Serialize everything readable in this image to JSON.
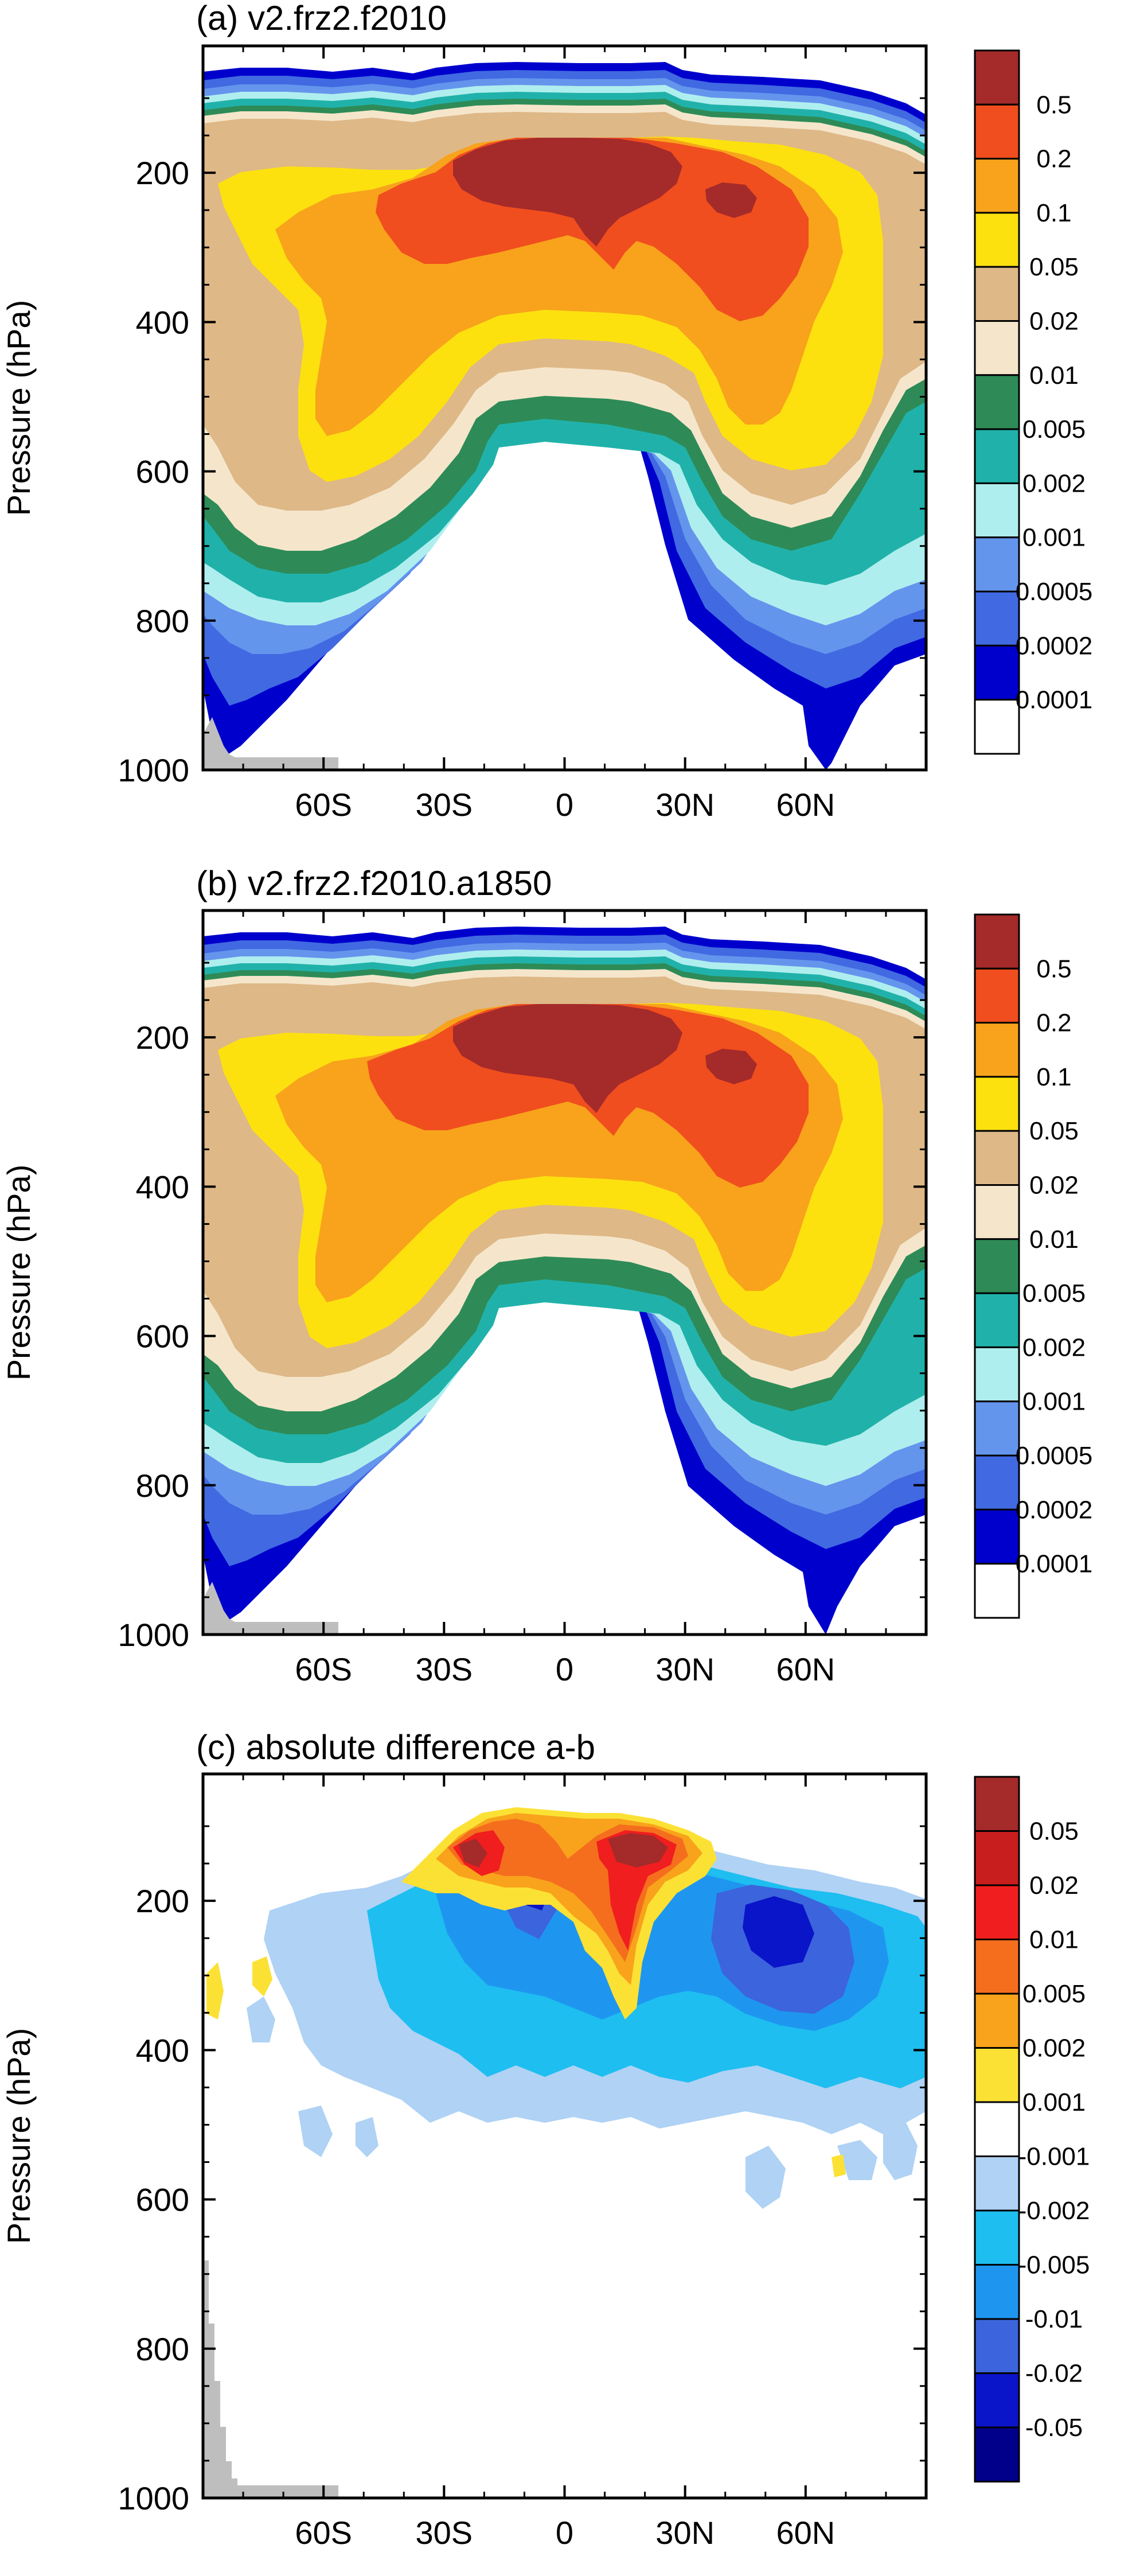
{
  "chart_data": [
    {
      "type": "contour",
      "title": "(a) v2.frz2.f2010",
      "xlabel": "",
      "ylabel": "Pressure (hPa)",
      "x_tick_labels": [
        "60S",
        "30S",
        "0",
        "30N",
        "60N"
      ],
      "x_ticks": [
        -60,
        -30,
        0,
        30,
        60
      ],
      "xlim": [
        -90,
        90
      ],
      "y_tick_labels": [
        "200",
        "400",
        "600",
        "800",
        "1000"
      ],
      "y_ticks": [
        200,
        400,
        600,
        800,
        1000
      ],
      "ylim": [
        1000,
        30
      ],
      "levels": [
        0.0001,
        0.0002,
        0.0005,
        0.001,
        0.002,
        0.005,
        0.01,
        0.02,
        0.05,
        0.1,
        0.2,
        0.5
      ],
      "colorbar": {
        "labels": [
          "0.5",
          "0.2",
          "0.1",
          "0.05",
          "0.02",
          "0.01",
          "0.005",
          "0.002",
          "0.001",
          "0.0005",
          "0.0002",
          "0.0001"
        ],
        "colors": [
          "#A52A2A",
          "#F04E1E",
          "#F8A31B",
          "#FCE10F",
          "#DEB887",
          "#F5E6CB",
          "#2E8B57",
          "#20B2AA",
          "#AFEEEE",
          "#6495ED",
          "#4169E1",
          "#0000CD",
          "#FFFFFF"
        ]
      }
    },
    {
      "type": "contour",
      "title": "(b) v2.frz2.f2010.a1850",
      "xlabel": "",
      "ylabel": "Pressure (hPa)",
      "x_tick_labels": [
        "60S",
        "30S",
        "0",
        "30N",
        "60N"
      ],
      "x_ticks": [
        -60,
        -30,
        0,
        30,
        60
      ],
      "xlim": [
        -90,
        90
      ],
      "y_tick_labels": [
        "200",
        "400",
        "600",
        "800",
        "1000"
      ],
      "y_ticks": [
        200,
        400,
        600,
        800,
        1000
      ],
      "ylim": [
        1000,
        30
      ],
      "levels": [
        0.0001,
        0.0002,
        0.0005,
        0.001,
        0.002,
        0.005,
        0.01,
        0.02,
        0.05,
        0.1,
        0.2,
        0.5
      ],
      "colorbar": {
        "labels": [
          "0.5",
          "0.2",
          "0.1",
          "0.05",
          "0.02",
          "0.01",
          "0.005",
          "0.002",
          "0.001",
          "0.0005",
          "0.0002",
          "0.0001"
        ],
        "colors": [
          "#A52A2A",
          "#F04E1E",
          "#F8A31B",
          "#FCE10F",
          "#DEB887",
          "#F5E6CB",
          "#2E8B57",
          "#20B2AA",
          "#AFEEEE",
          "#6495ED",
          "#4169E1",
          "#0000CD",
          "#FFFFFF"
        ]
      }
    },
    {
      "type": "contour",
      "title": "(c) absolute difference a-b",
      "xlabel": "",
      "ylabel": "Pressure (hPa)",
      "x_tick_labels": [
        "60S",
        "30S",
        "0",
        "30N",
        "60N"
      ],
      "x_ticks": [
        -60,
        -30,
        0,
        30,
        60
      ],
      "xlim": [
        -90,
        90
      ],
      "y_tick_labels": [
        "200",
        "400",
        "600",
        "800",
        "1000"
      ],
      "y_ticks": [
        200,
        400,
        600,
        800,
        1000
      ],
      "ylim": [
        1000,
        30
      ],
      "levels": [
        -0.05,
        -0.02,
        -0.01,
        -0.005,
        -0.002,
        -0.001,
        0.001,
        0.002,
        0.005,
        0.01,
        0.02,
        0.05
      ],
      "colorbar": {
        "labels": [
          "0.05",
          "0.02",
          "0.01",
          "0.005",
          "0.002",
          "0.001",
          "-0.001",
          "-0.002",
          "-0.005",
          "-0.01",
          "-0.02",
          "-0.05"
        ],
        "colors": [
          "#A52A2A",
          "#C81E1E",
          "#F01E1E",
          "#F56E1E",
          "#F8A31B",
          "#FCE135",
          "#FFFFFF",
          "#AFD2F5",
          "#1EBEF0",
          "#1E96F0",
          "#3C64DC",
          "#0A14C8",
          "#00008B"
        ]
      }
    }
  ]
}
